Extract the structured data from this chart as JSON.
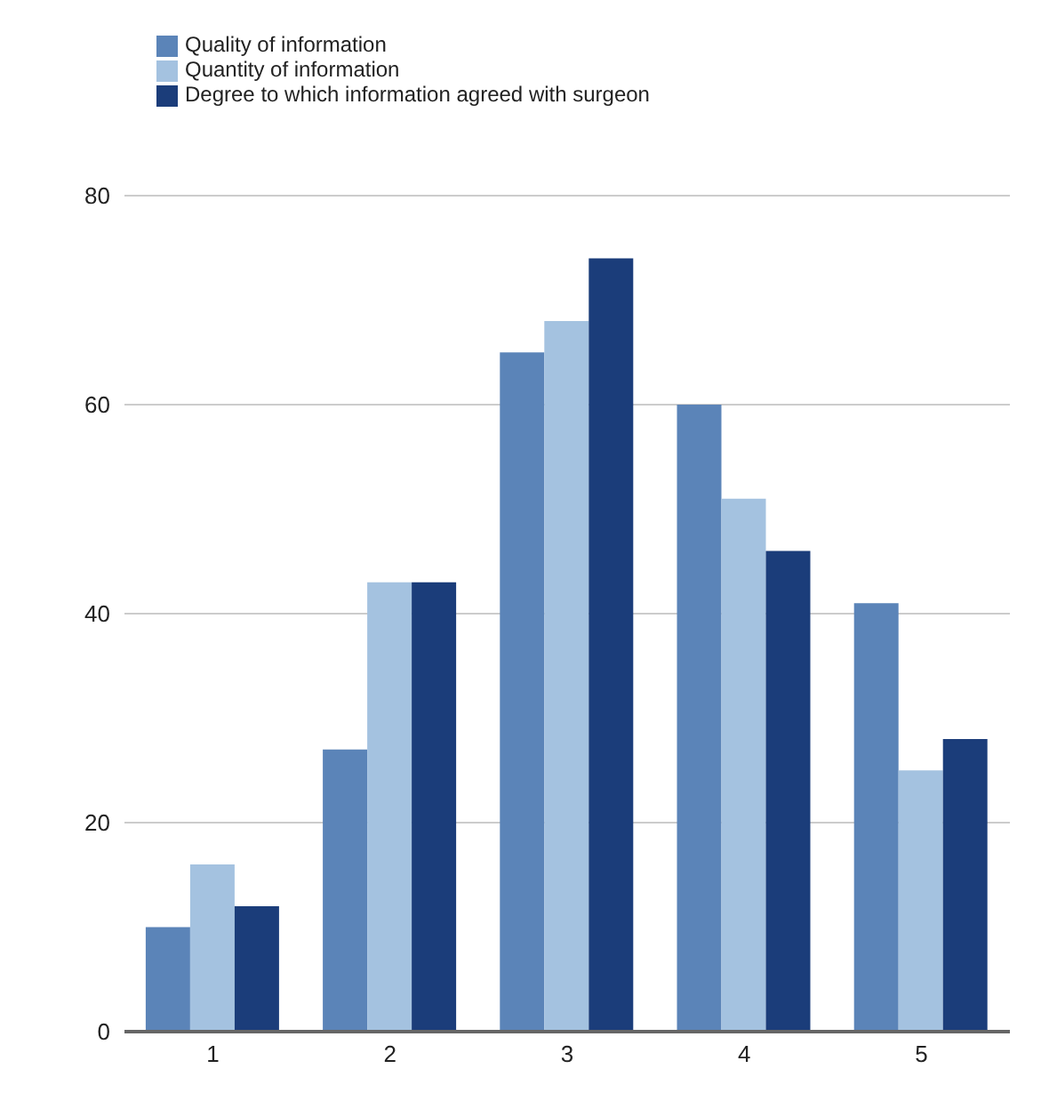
{
  "chart_data": {
    "type": "bar",
    "categories": [
      "1",
      "2",
      "3",
      "4",
      "5"
    ],
    "series": [
      {
        "name": "Quality of information",
        "color": "#5b84b8",
        "values": [
          10,
          27,
          65,
          60,
          41
        ]
      },
      {
        "name": "Quantity of information",
        "color": "#a4c2e0",
        "values": [
          16,
          43,
          68,
          51,
          25
        ]
      },
      {
        "name": "Degree to which information agreed with surgeon",
        "color": "#1b3d7a",
        "values": [
          12,
          43,
          74,
          46,
          28
        ]
      }
    ],
    "ylim": [
      0,
      80
    ],
    "yticks": [
      0,
      20,
      40,
      60,
      80
    ],
    "grid": "y",
    "legend": "top left"
  }
}
